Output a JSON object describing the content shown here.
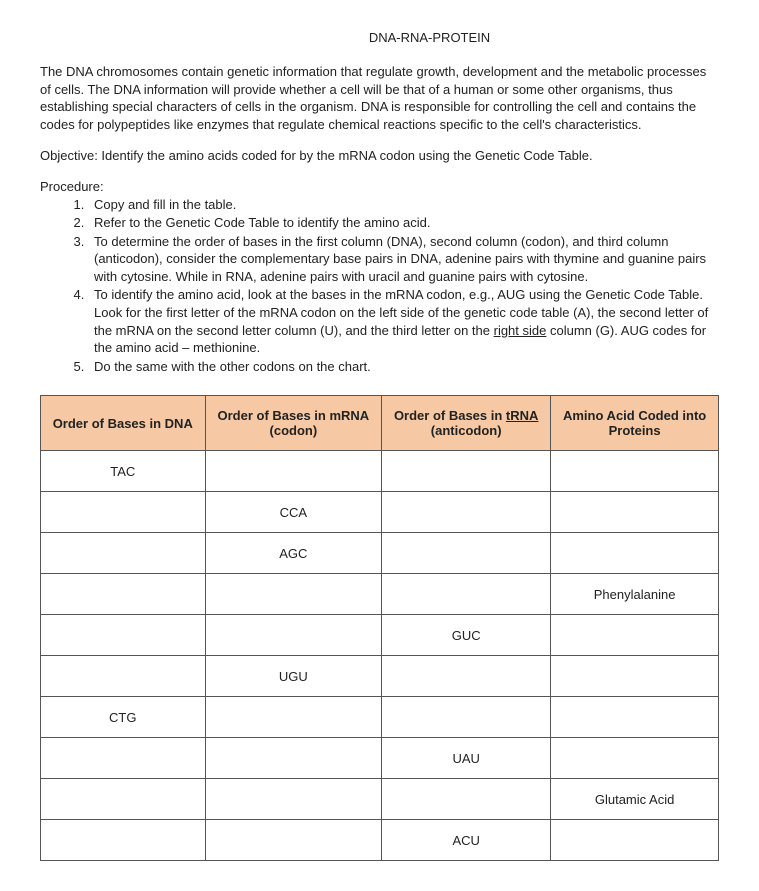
{
  "title": "DNA-RNA-PROTEIN",
  "intro": "The DNA chromosomes contain genetic information that regulate growth, development and the metabolic processes of cells. The DNA information will provide whether a cell will be that of a human or some other organisms, thus establishing special characters of cells in the organism. DNA is responsible for controlling the cell and contains the codes for polypeptides like enzymes that regulate chemical reactions specific to the cell's characteristics.",
  "objective": "Objective: Identify the amino acids coded for by the mRNA codon using the Genetic Code Table.",
  "procedure_label": "Procedure:",
  "steps": [
    "Copy and fill in the table.",
    "Refer to the Genetic Code Table to identify the amino acid.",
    "To determine the order of bases in the first column (DNA), second column (codon), and third column (anticodon), consider the complementary base pairs in DNA, adenine pairs with thymine and guanine pairs with cytosine. While in RNA, adenine pairs with uracil and guanine pairs with cytosine.",
    "",
    "Do the same with the other codons on the chart."
  ],
  "step4_a": "To identify the amino acid, look at the bases in the mRNA codon, e.g., AUG using the Genetic Code Table. Look for the first letter of the mRNA codon on the left side of the genetic code table (A), the second letter of the mRNA on the second letter column (U), and the third letter on the ",
  "step4_u": "right side",
  "step4_b": " column (G). AUG codes for the amino acid – methionine.",
  "table": {
    "headers": {
      "c1": "Order of Bases in DNA",
      "c2a": "Order of Bases in mRNA",
      "c2b": "(codon)",
      "c3a": "Order of Bases in ",
      "c3u": "tRNA",
      "c3b": "(anticodon)",
      "c4a": "Amino Acid Coded into",
      "c4b": "Proteins"
    },
    "rows": [
      {
        "c1": "TAC",
        "c2": "",
        "c3": "",
        "c4": ""
      },
      {
        "c1": "",
        "c2": "CCA",
        "c3": "",
        "c4": ""
      },
      {
        "c1": "",
        "c2": "AGC",
        "c3": "",
        "c4": ""
      },
      {
        "c1": "",
        "c2": "",
        "c3": "",
        "c4": "Phenylalanine"
      },
      {
        "c1": "",
        "c2": "",
        "c3": "GUC",
        "c4": ""
      },
      {
        "c1": "",
        "c2": "UGU",
        "c3": "",
        "c4": ""
      },
      {
        "c1": "CTG",
        "c2": "",
        "c3": "",
        "c4": ""
      },
      {
        "c1": "",
        "c2": "",
        "c3": "UAU",
        "c4": ""
      },
      {
        "c1": "",
        "c2": "",
        "c3": "",
        "c4": "Glutamic Acid"
      },
      {
        "c1": "",
        "c2": "",
        "c3": "ACU",
        "c4": ""
      }
    ],
    "header_bg": "#f6c9a4",
    "border_color": "#555555"
  }
}
